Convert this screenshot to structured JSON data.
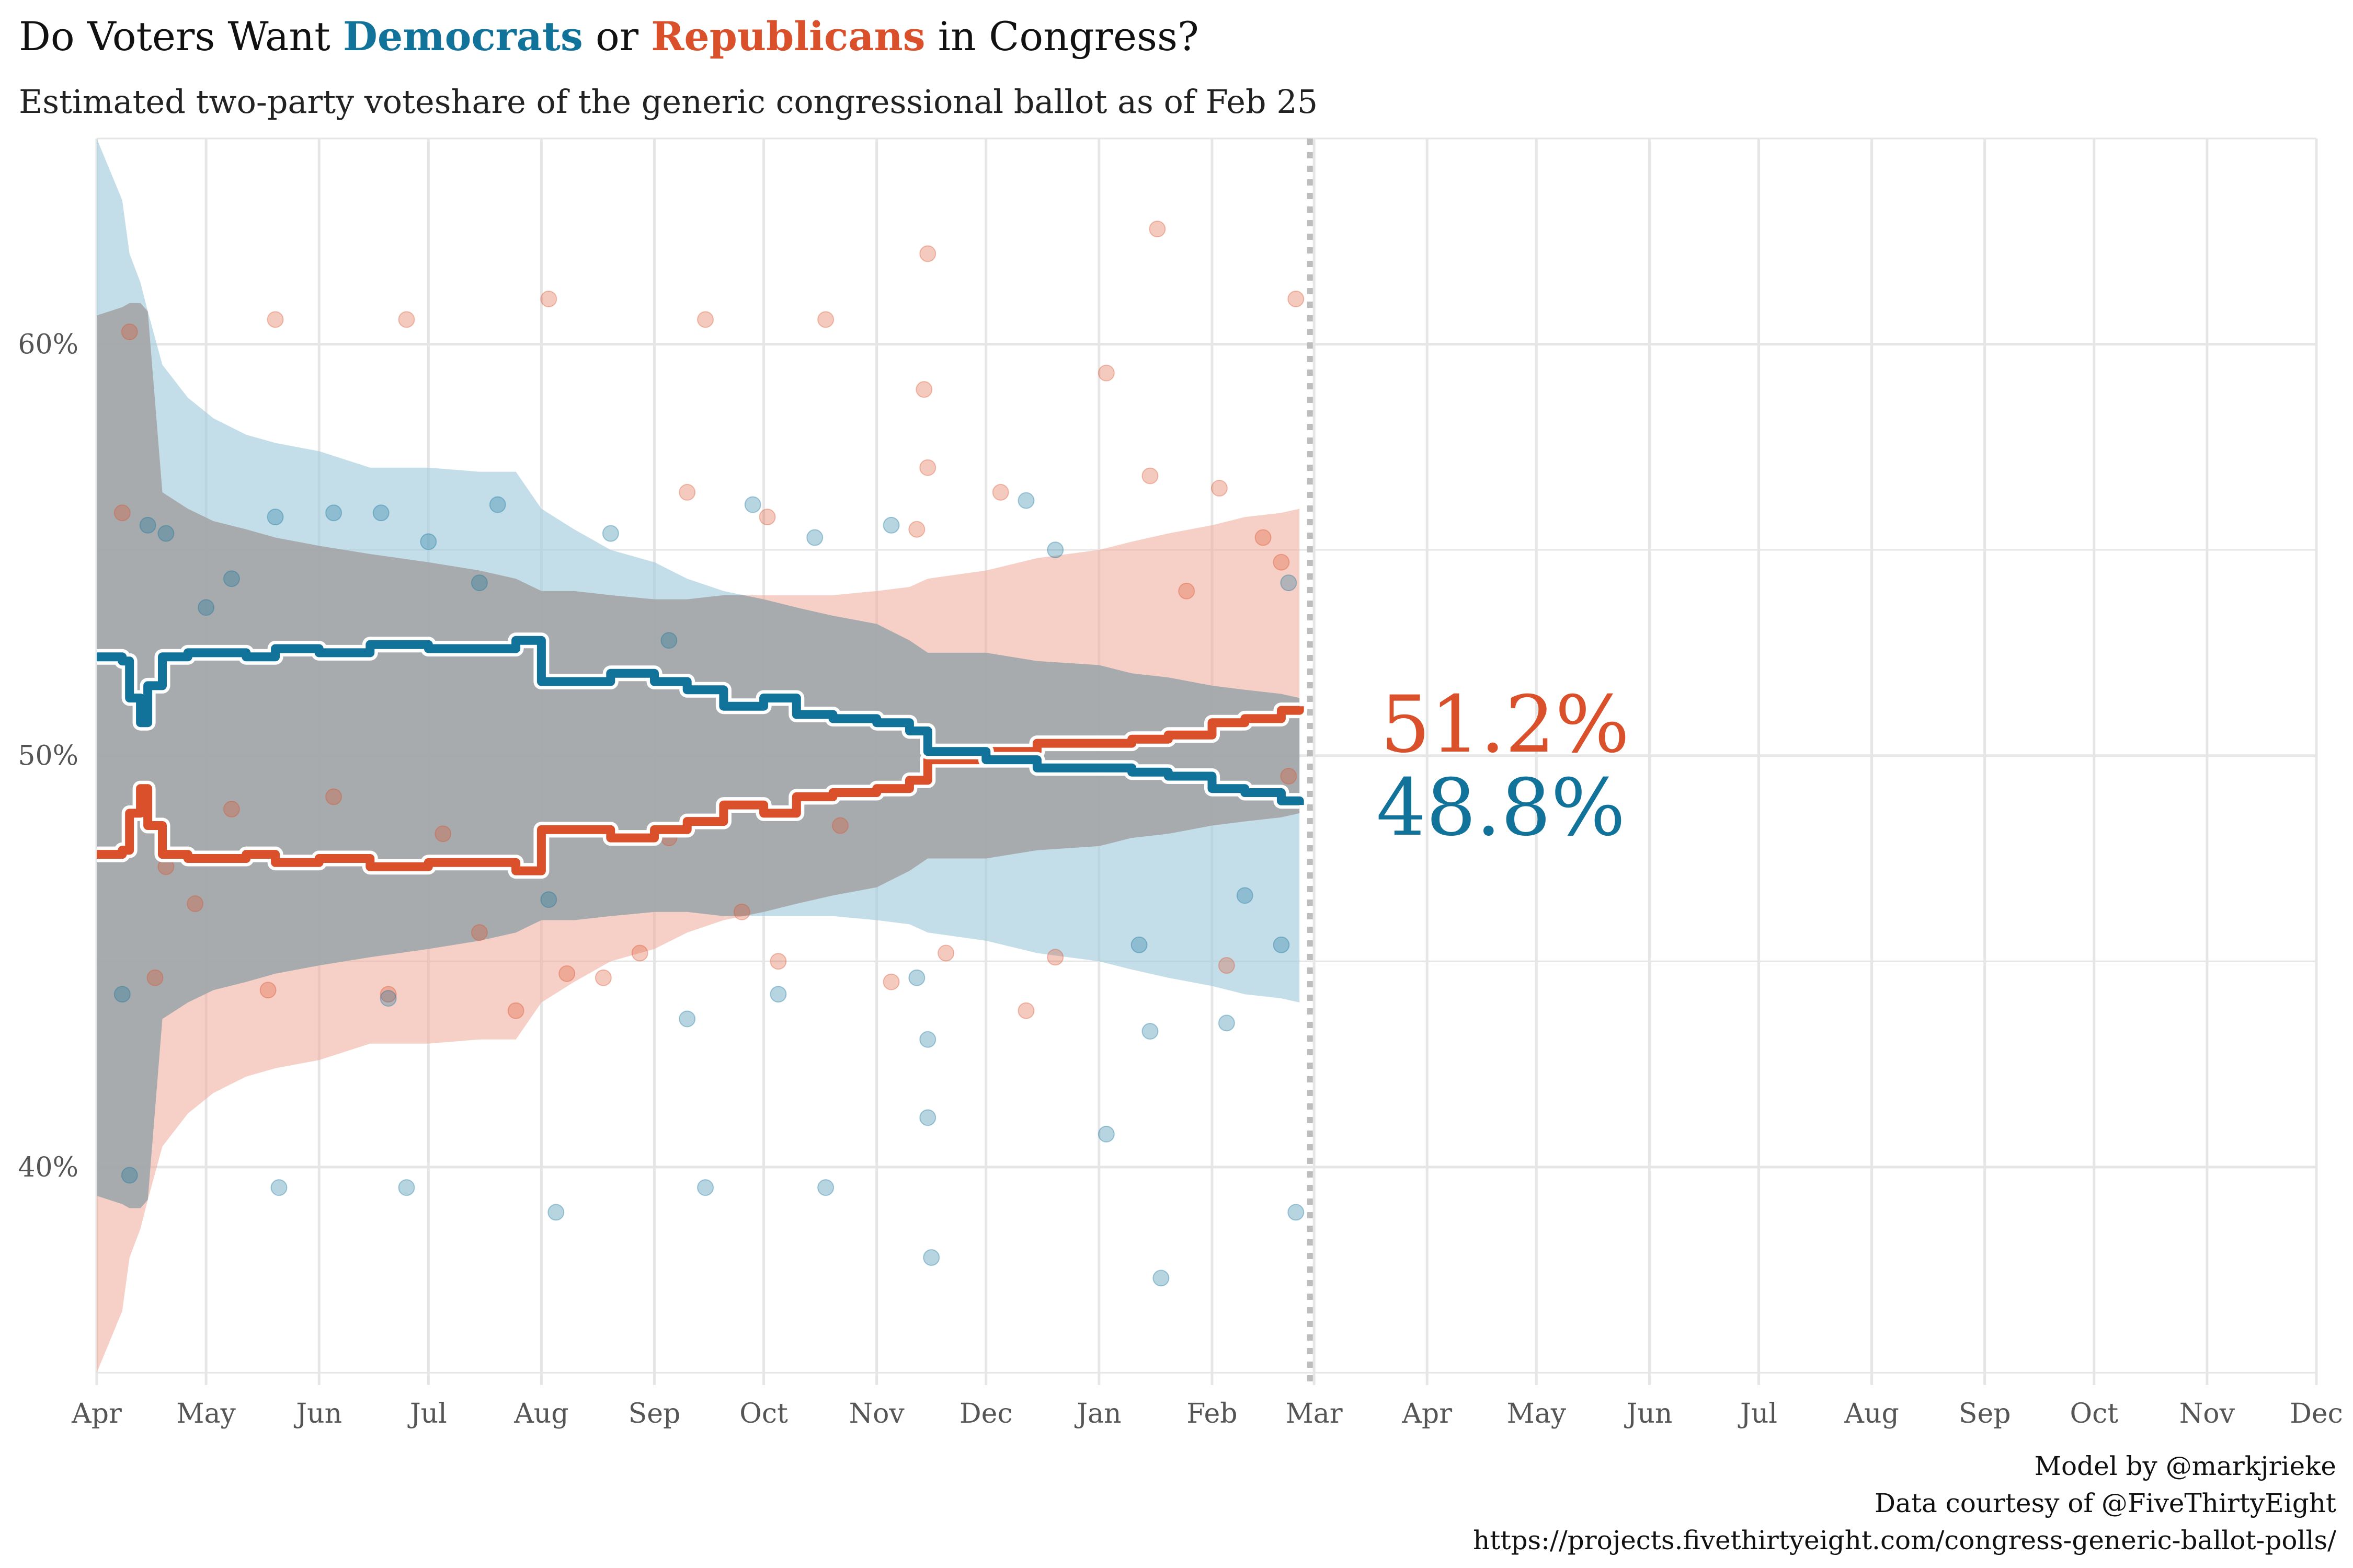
{
  "title": {
    "prefix": "Do Voters Want ",
    "dem": "Democrats",
    "middle": " or ",
    "rep": "Republicans",
    "suffix": " in Congress?"
  },
  "subtitle": "Estimated two-party voteshare of the generic congressional ballot as of Feb 25",
  "colors": {
    "dem": "#11729a",
    "rep": "#d9502a",
    "dem_band": "#9fcadb",
    "rep_band": "#eeaa98",
    "overlap": "#9c9c9c",
    "grid": "#e6e6e6",
    "today_line": "#bdbdbd"
  },
  "caption": [
    "Model by @markjrieke",
    "Data courtesy of @FiveThirtyEight",
    "https://projects.fivethirtyeight.com/congress-generic-ballot-polls/"
  ],
  "chart_data": {
    "type": "line",
    "x_axis": {
      "tick_labels": [
        "Apr",
        "May",
        "Jun",
        "Jul",
        "Aug",
        "Sep",
        "Oct",
        "Nov",
        "Dec",
        "Jan",
        "Feb",
        "Mar",
        "Apr",
        "May",
        "Jun",
        "Jul",
        "Aug",
        "Sep",
        "Oct",
        "Nov",
        "Dec"
      ],
      "domain": [
        "2021-04-01",
        "2022-12-01"
      ]
    },
    "y_axis": {
      "tick_labels": [
        "40%",
        "50%",
        "60%"
      ],
      "ticks": [
        40,
        50,
        60
      ],
      "ylim": [
        34.7,
        65
      ]
    },
    "grid": true,
    "as_of": "2022-02-25",
    "end_labels": {
      "rep": "51.2%",
      "dem": "48.8%"
    },
    "series": [
      {
        "party": "rep",
        "x": [
          "2021-04-01",
          "2021-04-08",
          "2021-04-10",
          "2021-04-13",
          "2021-04-15",
          "2021-04-19",
          "2021-04-26",
          "2021-05-03",
          "2021-05-12",
          "2021-05-20",
          "2021-06-01",
          "2021-06-15",
          "2021-07-01",
          "2021-07-15",
          "2021-07-25",
          "2021-08-01",
          "2021-08-10",
          "2021-08-20",
          "2021-09-01",
          "2021-09-10",
          "2021-09-20",
          "2021-10-01",
          "2021-10-10",
          "2021-10-20",
          "2021-11-01",
          "2021-11-10",
          "2021-11-15",
          "2021-12-01",
          "2021-12-15",
          "2022-01-01",
          "2022-01-10",
          "2022-01-20",
          "2022-02-01",
          "2022-02-10",
          "2022-02-20",
          "2022-02-25"
        ],
        "mid": [
          47.6,
          47.7,
          48.6,
          49.2,
          48.3,
          47.6,
          47.5,
          47.5,
          47.6,
          47.4,
          47.5,
          47.3,
          47.4,
          47.4,
          47.2,
          48.2,
          48.2,
          48.0,
          48.2,
          48.4,
          48.8,
          48.6,
          49.0,
          49.1,
          49.2,
          49.4,
          49.9,
          50.1,
          50.3,
          50.3,
          50.4,
          50.5,
          50.8,
          50.9,
          51.1,
          51.2
        ],
        "lo": [
          35.0,
          36.5,
          37.8,
          38.5,
          39.2,
          40.5,
          41.3,
          41.8,
          42.2,
          42.4,
          42.6,
          43.0,
          43.0,
          43.1,
          43.1,
          44.0,
          44.5,
          45.0,
          45.3,
          45.7,
          46.0,
          46.2,
          46.4,
          46.6,
          46.8,
          47.2,
          47.5,
          47.5,
          47.7,
          47.8,
          48.0,
          48.1,
          48.3,
          48.4,
          48.5,
          48.6
        ],
        "hi": [
          60.7,
          60.9,
          61.0,
          61.0,
          60.8,
          56.4,
          56.0,
          55.7,
          55.5,
          55.3,
          55.1,
          54.9,
          54.7,
          54.5,
          54.3,
          54.0,
          54.0,
          53.9,
          53.8,
          53.8,
          53.9,
          53.9,
          53.9,
          53.9,
          54.0,
          54.1,
          54.3,
          54.5,
          54.8,
          55.0,
          55.2,
          55.4,
          55.6,
          55.8,
          55.9,
          56.0
        ]
      },
      {
        "party": "dem",
        "x": [
          "2021-04-01",
          "2021-04-08",
          "2021-04-10",
          "2021-04-13",
          "2021-04-15",
          "2021-04-19",
          "2021-04-26",
          "2021-05-03",
          "2021-05-12",
          "2021-05-20",
          "2021-06-01",
          "2021-06-15",
          "2021-07-01",
          "2021-07-15",
          "2021-07-25",
          "2021-08-01",
          "2021-08-10",
          "2021-08-20",
          "2021-09-01",
          "2021-09-10",
          "2021-09-20",
          "2021-10-01",
          "2021-10-10",
          "2021-10-20",
          "2021-11-01",
          "2021-11-10",
          "2021-11-15",
          "2021-12-01",
          "2021-12-15",
          "2022-01-01",
          "2022-01-10",
          "2022-01-20",
          "2022-02-01",
          "2022-02-10",
          "2022-02-20",
          "2022-02-25"
        ],
        "mid": [
          52.4,
          52.3,
          51.4,
          50.8,
          51.7,
          52.4,
          52.5,
          52.5,
          52.4,
          52.6,
          52.5,
          52.7,
          52.6,
          52.6,
          52.8,
          51.8,
          51.8,
          52.0,
          51.8,
          51.6,
          51.2,
          51.4,
          51.0,
          50.9,
          50.8,
          50.6,
          50.1,
          49.9,
          49.7,
          49.7,
          49.6,
          49.5,
          49.2,
          49.1,
          48.9,
          48.8
        ],
        "lo": [
          39.3,
          39.1,
          39.0,
          39.0,
          39.2,
          43.6,
          44.0,
          44.3,
          44.5,
          44.7,
          44.9,
          45.1,
          45.3,
          45.5,
          45.7,
          46.0,
          46.0,
          46.1,
          46.2,
          46.2,
          46.1,
          46.1,
          46.1,
          46.1,
          46.0,
          45.9,
          45.7,
          45.5,
          45.2,
          45.0,
          44.8,
          44.6,
          44.4,
          44.2,
          44.1,
          44.0
        ],
        "hi": [
          65.0,
          63.5,
          62.2,
          61.5,
          60.8,
          59.5,
          58.7,
          58.2,
          57.8,
          57.6,
          57.4,
          57.0,
          57.0,
          56.9,
          56.9,
          56.0,
          55.5,
          55.0,
          54.7,
          54.3,
          54.0,
          53.8,
          53.6,
          53.4,
          53.2,
          52.8,
          52.5,
          52.5,
          52.3,
          52.2,
          52.0,
          51.9,
          51.7,
          51.6,
          51.5,
          51.4
        ]
      }
    ],
    "polls": [
      {
        "party": "rep",
        "x": "2021-04-10",
        "y": 60.3
      },
      {
        "party": "rep",
        "x": "2021-04-08",
        "y": 55.9
      },
      {
        "party": "rep",
        "x": "2021-04-20",
        "y": 47.3
      },
      {
        "party": "rep",
        "x": "2021-04-17",
        "y": 44.6
      },
      {
        "party": "rep",
        "x": "2021-04-28",
        "y": 46.4
      },
      {
        "party": "rep",
        "x": "2021-05-08",
        "y": 48.7
      },
      {
        "party": "rep",
        "x": "2021-05-18",
        "y": 44.3
      },
      {
        "party": "rep",
        "x": "2021-05-20",
        "y": 60.6
      },
      {
        "party": "rep",
        "x": "2021-06-05",
        "y": 49.0
      },
      {
        "party": "rep",
        "x": "2021-06-20",
        "y": 44.2
      },
      {
        "party": "rep",
        "x": "2021-06-25",
        "y": 60.6
      },
      {
        "party": "rep",
        "x": "2021-07-05",
        "y": 48.1
      },
      {
        "party": "rep",
        "x": "2021-07-15",
        "y": 45.7
      },
      {
        "party": "rep",
        "x": "2021-07-25",
        "y": 43.8
      },
      {
        "party": "rep",
        "x": "2021-08-03",
        "y": 61.1
      },
      {
        "party": "rep",
        "x": "2021-08-08",
        "y": 44.7
      },
      {
        "party": "rep",
        "x": "2021-08-18",
        "y": 44.6
      },
      {
        "party": "rep",
        "x": "2021-08-28",
        "y": 45.2
      },
      {
        "party": "rep",
        "x": "2021-09-05",
        "y": 48.0
      },
      {
        "party": "rep",
        "x": "2021-09-10",
        "y": 56.4
      },
      {
        "party": "rep",
        "x": "2021-09-15",
        "y": 60.6
      },
      {
        "party": "rep",
        "x": "2021-09-25",
        "y": 46.2
      },
      {
        "party": "rep",
        "x": "2021-10-02",
        "y": 55.8
      },
      {
        "party": "rep",
        "x": "2021-10-05",
        "y": 45.0
      },
      {
        "party": "rep",
        "x": "2021-10-18",
        "y": 60.6
      },
      {
        "party": "rep",
        "x": "2021-10-22",
        "y": 48.3
      },
      {
        "party": "rep",
        "x": "2021-11-05",
        "y": 44.5
      },
      {
        "party": "rep",
        "x": "2021-11-12",
        "y": 55.5
      },
      {
        "party": "rep",
        "x": "2021-11-14",
        "y": 58.9
      },
      {
        "party": "rep",
        "x": "2021-11-15",
        "y": 62.2
      },
      {
        "party": "rep",
        "x": "2021-11-15",
        "y": 57.0
      },
      {
        "party": "rep",
        "x": "2021-11-20",
        "y": 45.2
      },
      {
        "party": "rep",
        "x": "2021-12-05",
        "y": 56.4
      },
      {
        "party": "rep",
        "x": "2021-12-12",
        "y": 43.8
      },
      {
        "party": "rep",
        "x": "2021-12-20",
        "y": 45.1
      },
      {
        "party": "rep",
        "x": "2022-01-03",
        "y": 59.3
      },
      {
        "party": "rep",
        "x": "2022-01-15",
        "y": 56.8
      },
      {
        "party": "rep",
        "x": "2022-01-17",
        "y": 62.8
      },
      {
        "party": "rep",
        "x": "2022-01-25",
        "y": 54.0
      },
      {
        "party": "rep",
        "x": "2022-02-03",
        "y": 56.5
      },
      {
        "party": "rep",
        "x": "2022-02-05",
        "y": 44.9
      },
      {
        "party": "rep",
        "x": "2022-02-15",
        "y": 55.3
      },
      {
        "party": "rep",
        "x": "2022-02-20",
        "y": 54.7
      },
      {
        "party": "rep",
        "x": "2022-02-24",
        "y": 61.1
      },
      {
        "party": "rep",
        "x": "2022-02-22",
        "y": 49.5
      },
      {
        "party": "dem",
        "x": "2021-04-10",
        "y": 39.8
      },
      {
        "party": "dem",
        "x": "2021-04-08",
        "y": 44.2
      },
      {
        "party": "dem",
        "x": "2021-04-15",
        "y": 55.6
      },
      {
        "party": "dem",
        "x": "2021-04-20",
        "y": 55.4
      },
      {
        "party": "dem",
        "x": "2021-05-01",
        "y": 53.6
      },
      {
        "party": "dem",
        "x": "2021-05-08",
        "y": 54.3
      },
      {
        "party": "dem",
        "x": "2021-05-20",
        "y": 55.8
      },
      {
        "party": "dem",
        "x": "2021-05-21",
        "y": 39.5
      },
      {
        "party": "dem",
        "x": "2021-06-05",
        "y": 55.9
      },
      {
        "party": "dem",
        "x": "2021-06-18",
        "y": 55.9
      },
      {
        "party": "dem",
        "x": "2021-06-20",
        "y": 44.1
      },
      {
        "party": "dem",
        "x": "2021-06-25",
        "y": 39.5
      },
      {
        "party": "dem",
        "x": "2021-07-01",
        "y": 55.2
      },
      {
        "party": "dem",
        "x": "2021-07-15",
        "y": 54.2
      },
      {
        "party": "dem",
        "x": "2021-07-20",
        "y": 56.1
      },
      {
        "party": "dem",
        "x": "2021-08-03",
        "y": 46.5
      },
      {
        "party": "dem",
        "x": "2021-08-05",
        "y": 38.9
      },
      {
        "party": "dem",
        "x": "2021-08-20",
        "y": 55.4
      },
      {
        "party": "dem",
        "x": "2021-09-05",
        "y": 52.8
      },
      {
        "party": "dem",
        "x": "2021-09-10",
        "y": 43.6
      },
      {
        "party": "dem",
        "x": "2021-09-15",
        "y": 39.5
      },
      {
        "party": "dem",
        "x": "2021-09-28",
        "y": 56.1
      },
      {
        "party": "dem",
        "x": "2021-10-05",
        "y": 44.2
      },
      {
        "party": "dem",
        "x": "2021-10-15",
        "y": 55.3
      },
      {
        "party": "dem",
        "x": "2021-10-18",
        "y": 39.5
      },
      {
        "party": "dem",
        "x": "2021-11-05",
        "y": 55.6
      },
      {
        "party": "dem",
        "x": "2021-11-12",
        "y": 44.6
      },
      {
        "party": "dem",
        "x": "2021-11-15",
        "y": 43.1
      },
      {
        "party": "dem",
        "x": "2021-11-15",
        "y": 41.2
      },
      {
        "party": "dem",
        "x": "2021-11-16",
        "y": 37.8
      },
      {
        "party": "dem",
        "x": "2021-12-12",
        "y": 56.2
      },
      {
        "party": "dem",
        "x": "2021-12-20",
        "y": 55.0
      },
      {
        "party": "dem",
        "x": "2022-01-03",
        "y": 40.8
      },
      {
        "party": "dem",
        "x": "2022-01-12",
        "y": 45.4
      },
      {
        "party": "dem",
        "x": "2022-01-15",
        "y": 43.3
      },
      {
        "party": "dem",
        "x": "2022-01-18",
        "y": 37.3
      },
      {
        "party": "dem",
        "x": "2022-02-05",
        "y": 43.5
      },
      {
        "party": "dem",
        "x": "2022-02-10",
        "y": 46.6
      },
      {
        "party": "dem",
        "x": "2022-02-20",
        "y": 45.4
      },
      {
        "party": "dem",
        "x": "2022-02-24",
        "y": 38.9
      },
      {
        "party": "dem",
        "x": "2022-02-22",
        "y": 54.2
      }
    ]
  }
}
